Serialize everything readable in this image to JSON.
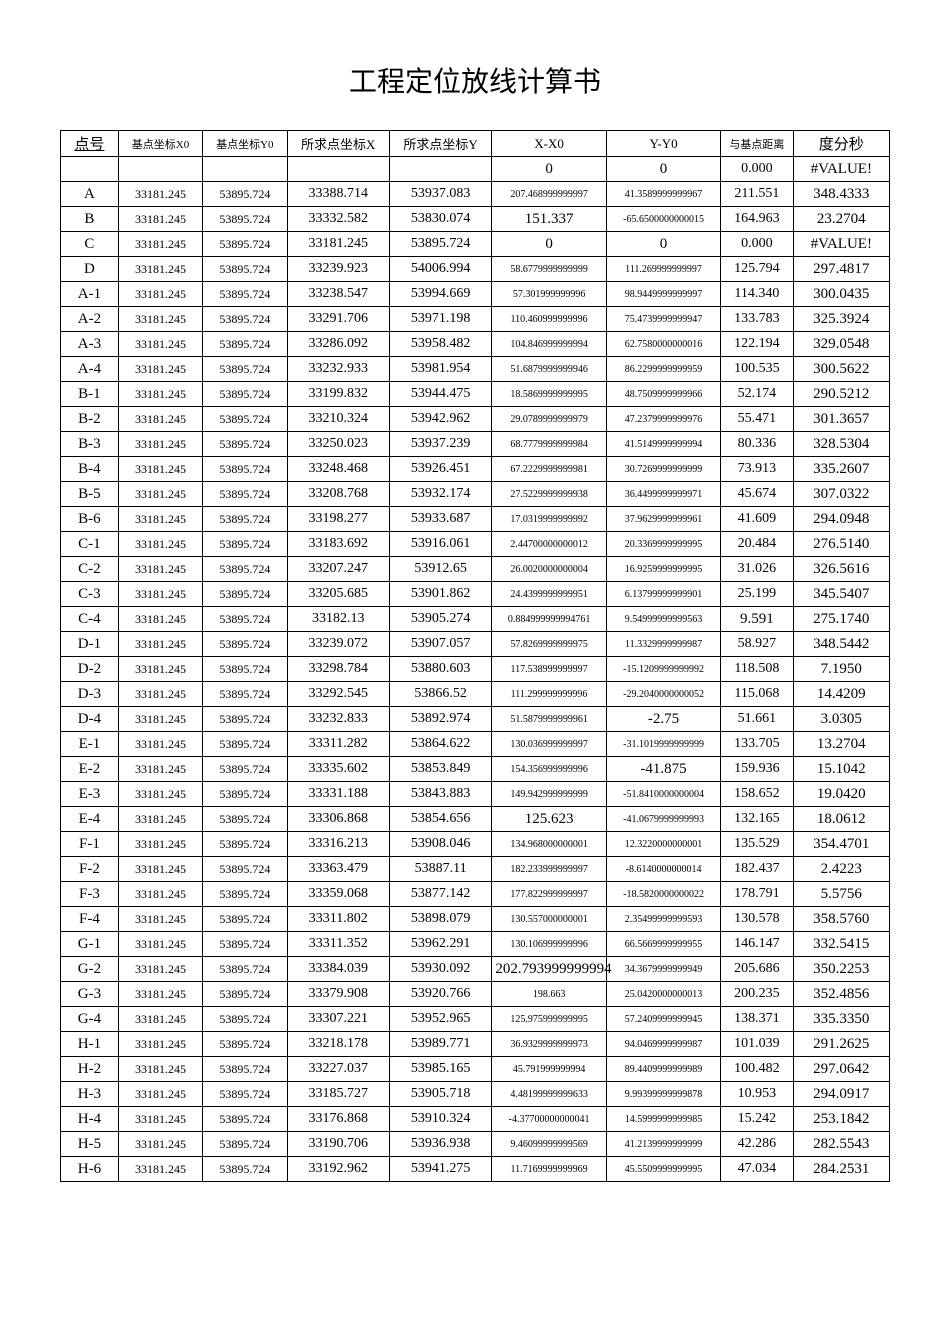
{
  "title": "工程定位放线计算书",
  "headers": [
    "点号",
    "基点坐标X0",
    "基点坐标Y0",
    "所求点坐标X",
    "所求点坐标Y",
    "X-X0",
    "Y-Y0",
    "与基点距离",
    "度分秒"
  ],
  "rows": [
    [
      "",
      "",
      "",
      "",
      "",
      "0",
      "0",
      "0.000",
      "#VALUE!"
    ],
    [
      "A",
      "33181.245",
      "53895.724",
      "33388.714",
      "53937.083",
      "207.468999999997",
      "41.3589999999967",
      "211.551",
      "348.4333"
    ],
    [
      "B",
      "33181.245",
      "53895.724",
      "33332.582",
      "53830.074",
      "151.337",
      "-65.6500000000015",
      "164.963",
      "23.2704"
    ],
    [
      "C",
      "33181.245",
      "53895.724",
      "33181.245",
      "53895.724",
      "0",
      "0",
      "0.000",
      "#VALUE!"
    ],
    [
      "D",
      "33181.245",
      "53895.724",
      "33239.923",
      "54006.994",
      "58.6779999999999",
      "111.269999999997",
      "125.794",
      "297.4817"
    ],
    [
      "A-1",
      "33181.245",
      "53895.724",
      "33238.547",
      "53994.669",
      "57.301999999996",
      "98.9449999999997",
      "114.340",
      "300.0435"
    ],
    [
      "A-2",
      "33181.245",
      "53895.724",
      "33291.706",
      "53971.198",
      "110.460999999996",
      "75.4739999999947",
      "133.783",
      "325.3924"
    ],
    [
      "A-3",
      "33181.245",
      "53895.724",
      "33286.092",
      "53958.482",
      "104.846999999994",
      "62.7580000000016",
      "122.194",
      "329.0548"
    ],
    [
      "A-4",
      "33181.245",
      "53895.724",
      "33232.933",
      "53981.954",
      "51.6879999999946",
      "86.2299999999959",
      "100.535",
      "300.5622"
    ],
    [
      "B-1",
      "33181.245",
      "53895.724",
      "33199.832",
      "53944.475",
      "18.5869999999995",
      "48.7509999999966",
      "52.174",
      "290.5212"
    ],
    [
      "B-2",
      "33181.245",
      "53895.724",
      "33210.324",
      "53942.962",
      "29.0789999999979",
      "47.2379999999976",
      "55.471",
      "301.3657"
    ],
    [
      "B-3",
      "33181.245",
      "53895.724",
      "33250.023",
      "53937.239",
      "68.7779999999984",
      "41.5149999999994",
      "80.336",
      "328.5304"
    ],
    [
      "B-4",
      "33181.245",
      "53895.724",
      "33248.468",
      "53926.451",
      "67.2229999999981",
      "30.7269999999999",
      "73.913",
      "335.2607"
    ],
    [
      "B-5",
      "33181.245",
      "53895.724",
      "33208.768",
      "53932.174",
      "27.5229999999938",
      "36.4499999999971",
      "45.674",
      "307.0322"
    ],
    [
      "B-6",
      "33181.245",
      "53895.724",
      "33198.277",
      "53933.687",
      "17.0319999999992",
      "37.9629999999961",
      "41.609",
      "294.0948"
    ],
    [
      "C-1",
      "33181.245",
      "53895.724",
      "33183.692",
      "53916.061",
      "2.44700000000012",
      "20.3369999999995",
      "20.484",
      "276.5140"
    ],
    [
      "C-2",
      "33181.245",
      "53895.724",
      "33207.247",
      "53912.65",
      "26.0020000000004",
      "16.9259999999995",
      "31.026",
      "326.5616"
    ],
    [
      "C-3",
      "33181.245",
      "53895.724",
      "33205.685",
      "53901.862",
      "24.4399999999951",
      "6.13799999999901",
      "25.199",
      "345.5407"
    ],
    [
      "C-4",
      "33181.245",
      "53895.724",
      "33182.13",
      "53905.274",
      "0.884999999994761",
      "9.54999999999563",
      "9.591",
      "275.1740"
    ],
    [
      "D-1",
      "33181.245",
      "53895.724",
      "33239.072",
      "53907.057",
      "57.8269999999975",
      "11.3329999999987",
      "58.927",
      "348.5442"
    ],
    [
      "D-2",
      "33181.245",
      "53895.724",
      "33298.784",
      "53880.603",
      "117.538999999997",
      "-15.1209999999992",
      "118.508",
      "7.1950"
    ],
    [
      "D-3",
      "33181.245",
      "53895.724",
      "33292.545",
      "53866.52",
      "111.299999999996",
      "-29.2040000000052",
      "115.068",
      "14.4209"
    ],
    [
      "D-4",
      "33181.245",
      "53895.724",
      "33232.833",
      "53892.974",
      "51.5879999999961",
      "-2.75",
      "51.661",
      "3.0305"
    ],
    [
      "E-1",
      "33181.245",
      "53895.724",
      "33311.282",
      "53864.622",
      "130.036999999997",
      "-31.1019999999999",
      "133.705",
      "13.2704"
    ],
    [
      "E-2",
      "33181.245",
      "53895.724",
      "33335.602",
      "53853.849",
      "154.356999999996",
      "-41.875",
      "159.936",
      "15.1042"
    ],
    [
      "E-3",
      "33181.245",
      "53895.724",
      "33331.188",
      "53843.883",
      "149.942999999999",
      "-51.8410000000004",
      "158.652",
      "19.0420"
    ],
    [
      "E-4",
      "33181.245",
      "53895.724",
      "33306.868",
      "53854.656",
      "125.623",
      "-41.0679999999993",
      "132.165",
      "18.0612"
    ],
    [
      "F-1",
      "33181.245",
      "53895.724",
      "33316.213",
      "53908.046",
      "134.968000000001",
      "12.3220000000001",
      "135.529",
      "354.4701"
    ],
    [
      "F-2",
      "33181.245",
      "53895.724",
      "33363.479",
      "53887.11",
      "182.233999999997",
      "-8.6140000000014",
      "182.437",
      "2.4223"
    ],
    [
      "F-3",
      "33181.245",
      "53895.724",
      "33359.068",
      "53877.142",
      "177.822999999997",
      "-18.5820000000022",
      "178.791",
      "5.5756"
    ],
    [
      "F-4",
      "33181.245",
      "53895.724",
      "33311.802",
      "53898.079",
      "130.557000000001",
      "2.35499999999593",
      "130.578",
      "358.5760"
    ],
    [
      "G-1",
      "33181.245",
      "53895.724",
      "33311.352",
      "53962.291",
      "130.106999999996",
      "66.5669999999955",
      "146.147",
      "332.5415"
    ],
    [
      "G-2",
      "33181.245",
      "53895.724",
      "33384.039",
      "53930.092",
      "202.793999999994",
      "34.3679999999949",
      "205.686",
      "350.2253"
    ],
    [
      "G-3",
      "33181.245",
      "53895.724",
      "33379.908",
      "53920.766",
      "198.663",
      "25.0420000000013",
      "200.235",
      "352.4856"
    ],
    [
      "G-4",
      "33181.245",
      "53895.724",
      "33307.221",
      "53952.965",
      "125.975999999995",
      "57.2409999999945",
      "138.371",
      "335.3350"
    ],
    [
      "H-1",
      "33181.245",
      "53895.724",
      "33218.178",
      "53989.771",
      "36.9329999999973",
      "94.0469999999987",
      "101.039",
      "291.2625"
    ],
    [
      "H-2",
      "33181.245",
      "53895.724",
      "33227.037",
      "53985.165",
      "45.791999999994",
      "89.4409999999989",
      "100.482",
      "297.0642"
    ],
    [
      "H-3",
      "33181.245",
      "53895.724",
      "33185.727",
      "53905.718",
      "4.48199999999633",
      "9.99399999999878",
      "10.953",
      "294.0917"
    ],
    [
      "H-4",
      "33181.245",
      "53895.724",
      "33176.868",
      "53910.324",
      "-4.37700000000041",
      "14.5999999999985",
      "15.242",
      "253.1842"
    ],
    [
      "H-5",
      "33181.245",
      "53895.724",
      "33190.706",
      "53936.938",
      "9.46099999999569",
      "41.2139999999999",
      "42.286",
      "282.5543"
    ],
    [
      "H-6",
      "33181.245",
      "53895.724",
      "33192.962",
      "53941.275",
      "11.7169999999969",
      "45.5509999999995",
      "47.034",
      "284.2531"
    ]
  ],
  "bigCells": {
    "0": [
      5,
      6
    ],
    "2": [
      5
    ],
    "3": [
      5,
      6
    ],
    "18": [
      7
    ],
    "22": [
      6
    ],
    "24": [
      6
    ],
    "26": [
      5
    ],
    "32": [
      5
    ]
  }
}
